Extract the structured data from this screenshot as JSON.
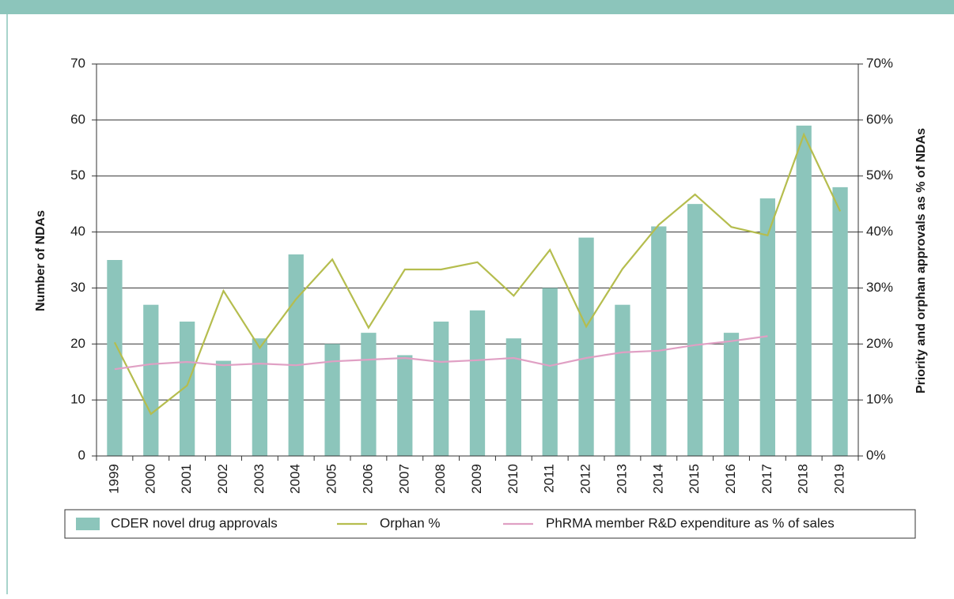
{
  "chart_data": {
    "type": "bar",
    "categories": [
      "1999",
      "2000",
      "2001",
      "2002",
      "2003",
      "2004",
      "2005",
      "2006",
      "2007",
      "2008",
      "2009",
      "2010",
      "2011",
      "2012",
      "2013",
      "2014",
      "2015",
      "2016",
      "2017",
      "2018",
      "2019"
    ],
    "y_label": "Number of NDAs",
    "y2_label": "Priority and orphan approvals as % of NDAs",
    "ylim": [
      0,
      70
    ],
    "yticks": [
      0,
      10,
      20,
      30,
      40,
      50,
      60,
      70
    ],
    "y2lim": [
      0,
      70
    ],
    "y2ticks": [
      {
        "value": 0,
        "label": "0%"
      },
      {
        "value": 10,
        "label": "10%"
      },
      {
        "value": 20,
        "label": "20%"
      },
      {
        "value": 30,
        "label": "30%"
      },
      {
        "value": 40,
        "label": "40%"
      },
      {
        "value": 50,
        "label": "50%"
      },
      {
        "value": 60,
        "label": "60%"
      },
      {
        "value": 70,
        "label": "70%"
      }
    ],
    "grid": true,
    "series": [
      {
        "name": "CDER novel drug approvals",
        "type": "bar",
        "color": "#8cc5bb",
        "values": [
          35,
          27,
          24,
          17,
          21,
          36,
          20,
          22,
          18,
          24,
          26,
          21,
          30,
          39,
          27,
          41,
          45,
          22,
          46,
          59,
          48
        ]
      },
      {
        "name": "Orphan %",
        "type": "line",
        "axis": "y2",
        "color": "#b5bd4e",
        "values": [
          20.3,
          7.5,
          12.6,
          29.5,
          19.3,
          28,
          35.1,
          22.9,
          33.3,
          33.3,
          34.6,
          28.6,
          36.8,
          23.1,
          33.4,
          41.3,
          46.7,
          40.9,
          39.4,
          57.4,
          43.7
        ]
      },
      {
        "name": "PhRMA member R&D expenditure as % of sales",
        "type": "line",
        "axis": "y2",
        "color": "#e0a0c4",
        "values": [
          15.5,
          16.4,
          16.8,
          16.2,
          16.5,
          16.2,
          16.9,
          17.2,
          17.5,
          16.8,
          17.1,
          17.5,
          16.1,
          17.5,
          18.5,
          18.8,
          19.8,
          20.5,
          21.4,
          null,
          null
        ]
      }
    ]
  }
}
